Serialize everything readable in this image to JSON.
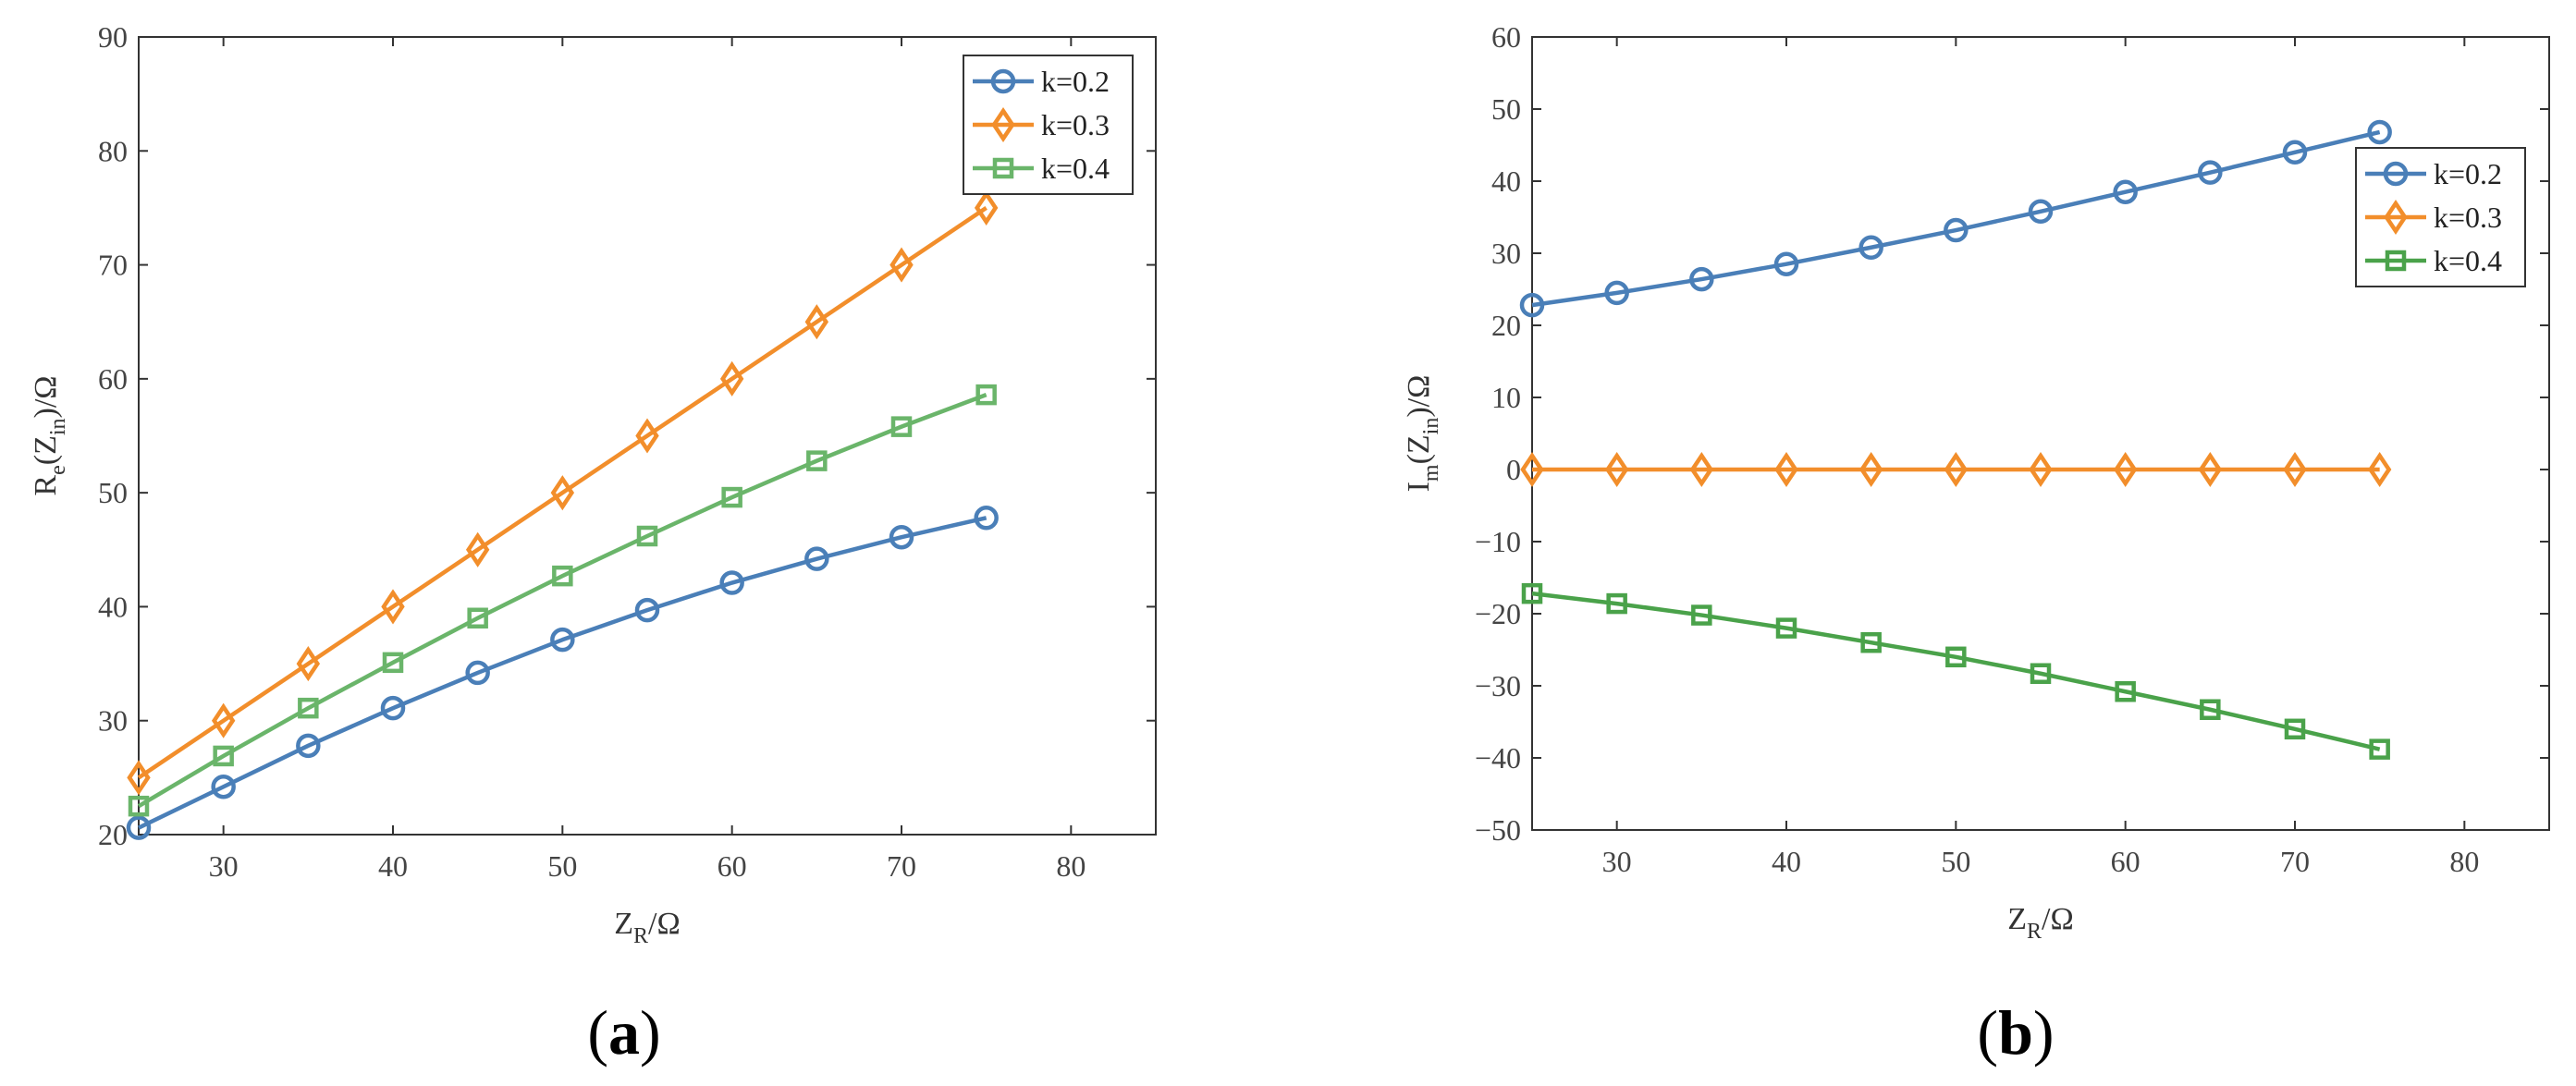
{
  "chart_data": [
    {
      "type": "line",
      "panel_label": "a",
      "title": "",
      "xlabel": {
        "main": "Z",
        "sub": "R",
        "suffix": "/Ω"
      },
      "ylabel": {
        "p1": "R",
        "s1": "e",
        "p2": "(Z",
        "s2": "in",
        "p3": ")/Ω"
      },
      "xlim": [
        25,
        85
      ],
      "ylim": [
        20,
        90
      ],
      "xticks": [
        30,
        40,
        50,
        60,
        70,
        80
      ],
      "yticks": [
        20,
        30,
        40,
        50,
        60,
        70,
        80,
        90
      ],
      "legend_position": "top-right",
      "grid": false,
      "x": [
        25,
        30,
        35,
        40,
        45,
        50,
        55,
        60,
        65,
        70,
        75
      ],
      "series": [
        {
          "name": "k=0.2",
          "color": "#4a7fb8",
          "marker": "circle",
          "values": [
            20.6,
            24.2,
            27.8,
            31.1,
            34.2,
            37.1,
            39.7,
            42.1,
            44.2,
            46.1,
            47.8
          ]
        },
        {
          "name": "k=0.3",
          "color": "#f28e2b",
          "marker": "diamond",
          "values": [
            25,
            30,
            35,
            40,
            45,
            50,
            55,
            60,
            65,
            70,
            75
          ]
        },
        {
          "name": "k=0.4",
          "color": "#6ab56a",
          "marker": "square",
          "values": [
            22.5,
            26.9,
            31.1,
            35.1,
            39.0,
            42.7,
            46.2,
            49.6,
            52.8,
            55.8,
            58.6
          ]
        }
      ]
    },
    {
      "type": "line",
      "panel_label": "b",
      "title": "",
      "xlabel": {
        "main": "Z",
        "sub": "R",
        "suffix": "/Ω"
      },
      "ylabel": {
        "p1": "I",
        "s1": "m",
        "p2": "(Z",
        "s2": "in",
        "p3": ")/Ω"
      },
      "xlim": [
        25,
        85
      ],
      "ylim": [
        -50,
        60
      ],
      "xticks": [
        30,
        40,
        50,
        60,
        70,
        80
      ],
      "yticks": [
        -50,
        -40,
        -30,
        -20,
        -10,
        0,
        10,
        20,
        30,
        40,
        50,
        60
      ],
      "legend_position": "top-right",
      "grid": false,
      "x": [
        25,
        30,
        35,
        40,
        45,
        50,
        55,
        60,
        65,
        70,
        75
      ],
      "series": [
        {
          "name": "k=0.2",
          "color": "#4a7fb8",
          "marker": "circle",
          "values": [
            22.8,
            24.5,
            26.4,
            28.5,
            30.8,
            33.2,
            35.8,
            38.5,
            41.2,
            44.0,
            46.8
          ]
        },
        {
          "name": "k=0.3",
          "color": "#f28e2b",
          "marker": "diamond",
          "values": [
            0,
            0,
            0,
            0,
            0,
            0,
            0,
            0,
            0,
            0,
            0
          ]
        },
        {
          "name": "k=0.4",
          "color": "#4aa24a",
          "marker": "square",
          "values": [
            -17.2,
            -18.6,
            -20.2,
            -22.0,
            -24.0,
            -26.0,
            -28.3,
            -30.8,
            -33.3,
            -36.0,
            -38.8
          ]
        }
      ]
    }
  ]
}
